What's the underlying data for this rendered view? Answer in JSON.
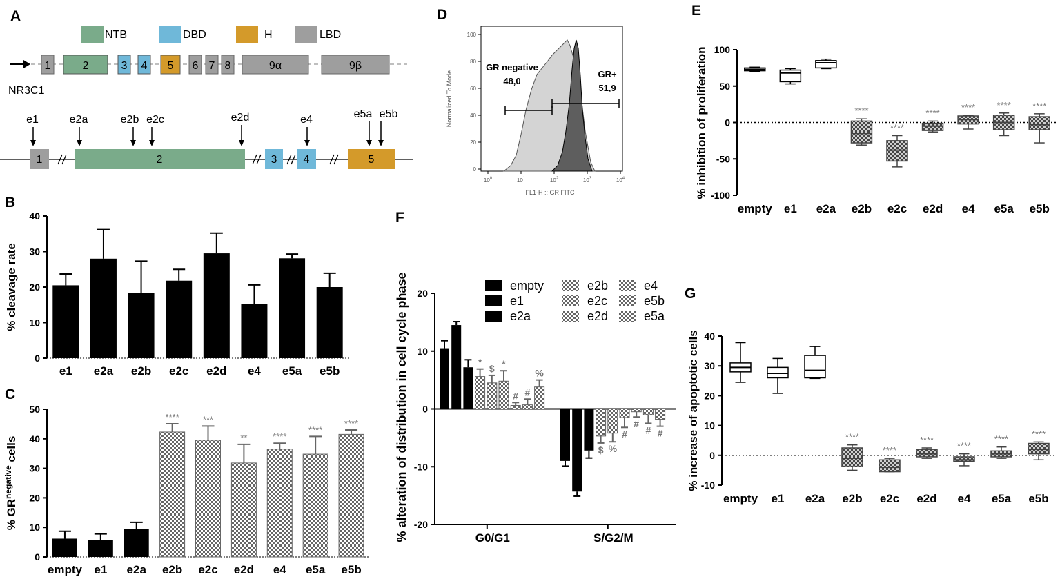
{
  "colors": {
    "ntb": "#7aab8a",
    "dbd": "#6fb8d9",
    "h": "#d49a2a",
    "lbd": "#9e9e9e",
    "bar": "#000000",
    "sig": "#777777"
  },
  "panel_labels": [
    "A",
    "B",
    "C",
    "D",
    "E",
    "F",
    "G"
  ],
  "panelA": {
    "legend": [
      "NTB",
      "DBD",
      "H",
      "LBD"
    ],
    "gene_name": "NR3C1",
    "gene_exons": [
      "1",
      "2",
      "3",
      "4",
      "5",
      "6",
      "7",
      "8",
      "9α",
      "9β"
    ],
    "zoom_exons": [
      "1",
      "2",
      "3",
      "4",
      "5"
    ],
    "guides": [
      "e1",
      "e2a",
      "e2b",
      "e2c",
      "e2d",
      "e4",
      "e5a",
      "e5b"
    ]
  },
  "chart_data": [
    {
      "panel": "B",
      "type": "bar",
      "ylabel": "% cleavage rate",
      "ylim": [
        0,
        40
      ],
      "yticks": [
        0,
        10,
        20,
        30,
        40
      ],
      "categories": [
        "e1",
        "e2a",
        "e2b",
        "e2c",
        "e2d",
        "e4",
        "e5a",
        "e5b"
      ],
      "values": [
        20.5,
        28,
        18.3,
        21.8,
        29.5,
        15.3,
        28.1,
        20
      ],
      "errors": [
        3.2,
        8.2,
        9,
        3.2,
        5.7,
        5.3,
        1.2,
        3.9
      ]
    },
    {
      "panel": "C",
      "type": "bar",
      "ylabel": "% GR",
      "ylabel_sup": "negative",
      "ylabel_end": " cells",
      "ylim": [
        0,
        50
      ],
      "yticks": [
        0,
        10,
        20,
        30,
        40,
        50
      ],
      "categories": [
        "empty",
        "e1",
        "e2a",
        "e2b",
        "e2c",
        "e2d",
        "e4",
        "e5a",
        "e5b"
      ],
      "values": [
        6.2,
        5.8,
        9.5,
        42.3,
        39.5,
        31.8,
        36.5,
        34.8,
        41.5
      ],
      "errors": [
        2.5,
        2.0,
        2.2,
        2.8,
        4.8,
        6.3,
        2.0,
        6.0,
        1.5
      ],
      "significance": [
        "",
        "",
        "",
        "****",
        "***",
        "**",
        "****",
        "****",
        "****"
      ]
    },
    {
      "panel": "D",
      "type": "area",
      "xlabel": "FL1-H :: GR FITC",
      "ylabel": "Normalized To Mode",
      "yticks": [
        "0",
        "20",
        "40",
        "60",
        "80",
        "100"
      ],
      "xticks": [
        "10",
        "10",
        "10",
        "10",
        "10"
      ],
      "xtick_exp": [
        "0",
        "1",
        "2",
        "3",
        "4"
      ],
      "gates": [
        {
          "label": "GR negative",
          "value": "48,0"
        },
        {
          "label": "GR+",
          "value": "51,9"
        }
      ]
    },
    {
      "panel": "E",
      "type": "box",
      "ylabel": "% inhibition of proliferation",
      "ylim": [
        -100,
        100
      ],
      "yticks": [
        -100,
        -50,
        0,
        50,
        100
      ],
      "categories": [
        "empty",
        "e1",
        "e2a",
        "e2b",
        "e2c",
        "e2d",
        "e4",
        "e5a",
        "e5b"
      ],
      "boxes": [
        {
          "min": 70,
          "q1": 71,
          "median": 73,
          "q3": 75,
          "max": 76
        },
        {
          "min": 53,
          "q1": 56,
          "median": 68,
          "q3": 72,
          "max": 74
        },
        {
          "min": 74,
          "q1": 75,
          "median": 82,
          "q3": 85,
          "max": 87
        },
        {
          "min": -31,
          "q1": -28,
          "median": -15,
          "q3": 2,
          "max": 5
        },
        {
          "min": -61,
          "q1": -53,
          "median": -38,
          "q3": -25,
          "max": -18
        },
        {
          "min": -13,
          "q1": -11,
          "median": -5,
          "q3": -1,
          "max": 2
        },
        {
          "min": -9,
          "q1": -2,
          "median": 4,
          "q3": 9,
          "max": 10
        },
        {
          "min": -18,
          "q1": -10,
          "median": 0,
          "q3": 10,
          "max": 13
        },
        {
          "min": -28,
          "q1": -10,
          "median": -3,
          "q3": 8,
          "max": 12
        }
      ],
      "significance": [
        "",
        "",
        "",
        "****",
        "****",
        "****",
        "****",
        "****",
        "****"
      ]
    },
    {
      "panel": "F",
      "type": "bar",
      "ylabel": "% alteration of distribution in cell cycle phase",
      "ylim": [
        -20,
        20
      ],
      "yticks": [
        -20,
        -10,
        0,
        10,
        20
      ],
      "categories": [
        "G0/G1",
        "S/G2/M"
      ],
      "series": [
        {
          "name": "empty",
          "values": [
            10.5,
            -9
          ]
        },
        {
          "name": "e1",
          "values": [
            14.5,
            -14.3
          ]
        },
        {
          "name": "e2a",
          "values": [
            7.2,
            -7.2
          ]
        },
        {
          "name": "e2b",
          "values": [
            5.6,
            -4.7
          ]
        },
        {
          "name": "e2c",
          "values": [
            4.5,
            -4.2
          ]
        },
        {
          "name": "e2d",
          "values": [
            4.8,
            -1.5
          ]
        },
        {
          "name": "e4",
          "values": [
            0.6,
            -0.5
          ]
        },
        {
          "name": "e5b",
          "values": [
            0.7,
            -1.0
          ]
        },
        {
          "name": "e5a",
          "values": [
            3.8,
            -1.8
          ]
        }
      ],
      "errors": [
        [
          1.3,
          0.9
        ],
        [
          0.6,
          0.8
        ],
        [
          1.3,
          1.3
        ],
        [
          1.3,
          1.2
        ],
        [
          1.3,
          1.5
        ],
        [
          1.8,
          1.7
        ],
        [
          0.5,
          0.9
        ],
        [
          1.0,
          1.5
        ],
        [
          1.2,
          1.2
        ]
      ],
      "annotations": [
        [
          "",
          ""
        ],
        [
          "",
          ""
        ],
        [
          "",
          ""
        ],
        [
          "*",
          "$"
        ],
        [
          "$",
          "%"
        ],
        [
          "*",
          "#"
        ],
        [
          "#",
          "#"
        ],
        [
          "#",
          "#"
        ],
        [
          "%",
          "#"
        ]
      ],
      "legend": [
        [
          "empty",
          "e1",
          "e2a"
        ],
        [
          "e2b",
          "e2c",
          "e2d"
        ],
        [
          "e4",
          "e5b",
          "e5a"
        ]
      ]
    },
    {
      "panel": "G",
      "type": "box",
      "ylabel": "% increase of apoptotic cells",
      "ylim": [
        -10,
        40
      ],
      "yticks": [
        -10,
        0,
        10,
        20,
        30,
        40
      ],
      "categories": [
        "empty",
        "e1",
        "e2a",
        "e2b",
        "e2c",
        "e2d",
        "e4",
        "e5a",
        "e5b"
      ],
      "boxes": [
        {
          "min": 24.5,
          "q1": 28,
          "median": 29.5,
          "q3": 31,
          "max": 37.8
        },
        {
          "min": 20.8,
          "q1": 26,
          "median": 27.5,
          "q3": 29.5,
          "max": 32.5
        },
        {
          "min": 25.8,
          "q1": 26,
          "median": 28.5,
          "q3": 33.5,
          "max": 36.5
        },
        {
          "min": -5,
          "q1": -3.8,
          "median": -1,
          "q3": 2.5,
          "max": 3.5
        },
        {
          "min": -5.5,
          "q1": -5.5,
          "median": -4,
          "q3": -1.5,
          "max": -1
        },
        {
          "min": -1,
          "q1": -0.5,
          "median": 0.5,
          "q3": 2,
          "max": 2.5
        },
        {
          "min": -3.5,
          "q1": -2,
          "median": -1.5,
          "q3": -0.5,
          "max": 0.5
        },
        {
          "min": -1,
          "q1": -0.5,
          "median": 0.5,
          "q3": 1.5,
          "max": 2.8
        },
        {
          "min": -1.5,
          "q1": 0.5,
          "median": 2,
          "q3": 4,
          "max": 4.5
        }
      ],
      "significance": [
        "",
        "",
        "",
        "****",
        "****",
        "****",
        "****",
        "****",
        "****"
      ]
    }
  ]
}
